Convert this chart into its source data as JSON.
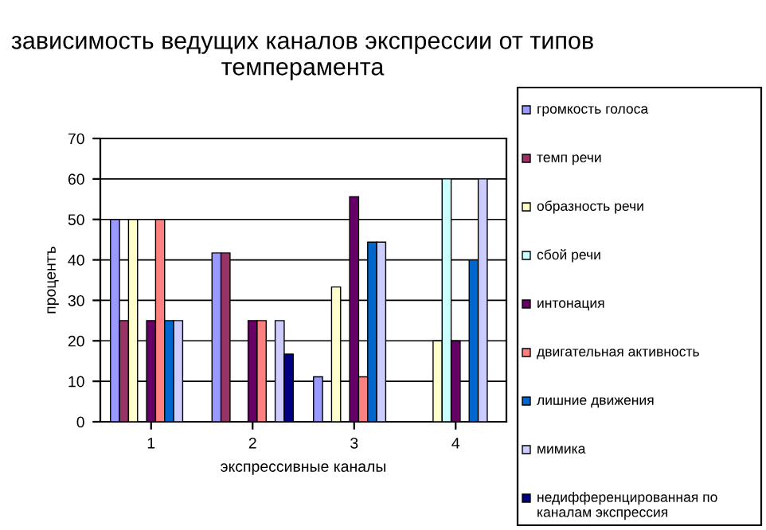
{
  "chart_data": {
    "type": "bar",
    "title": "зависимость ведущих каналов экспрессии от типов темперамента",
    "xlabel": "экспрессивные каналы",
    "ylabel": "процентъ",
    "categories": [
      "1",
      "2",
      "3",
      "4"
    ],
    "series": [
      {
        "name": "громкость голоса",
        "color": "#9999ff",
        "values": [
          50,
          41.7,
          11.1,
          null
        ]
      },
      {
        "name": "темп речи",
        "color": "#993366",
        "values": [
          25,
          41.7,
          null,
          null
        ]
      },
      {
        "name": "образность речи",
        "color": "#ffffcc",
        "values": [
          50,
          null,
          33.3,
          20
        ]
      },
      {
        "name": "сбой речи",
        "color": "#ccffff",
        "values": [
          null,
          null,
          null,
          60
        ]
      },
      {
        "name": "интонация",
        "color": "#660066",
        "values": [
          25,
          25,
          55.6,
          20
        ]
      },
      {
        "name": "двигательная активность",
        "color": "#ff8080",
        "values": [
          50,
          25,
          11.1,
          null
        ]
      },
      {
        "name": "лишние движения",
        "color": "#0066cc",
        "values": [
          25,
          null,
          44.4,
          40
        ]
      },
      {
        "name": "мимика",
        "color": "#ccccff",
        "values": [
          25,
          25,
          44.4,
          60
        ]
      },
      {
        "name": "недифференцированная по каналам экспрессия",
        "color": "#000080",
        "values": [
          null,
          16.7,
          null,
          null
        ]
      }
    ],
    "ylim": [
      0,
      70
    ],
    "yticks": [
      0,
      10,
      20,
      30,
      40,
      50,
      60,
      70
    ],
    "grid": "y",
    "legend": "right"
  }
}
